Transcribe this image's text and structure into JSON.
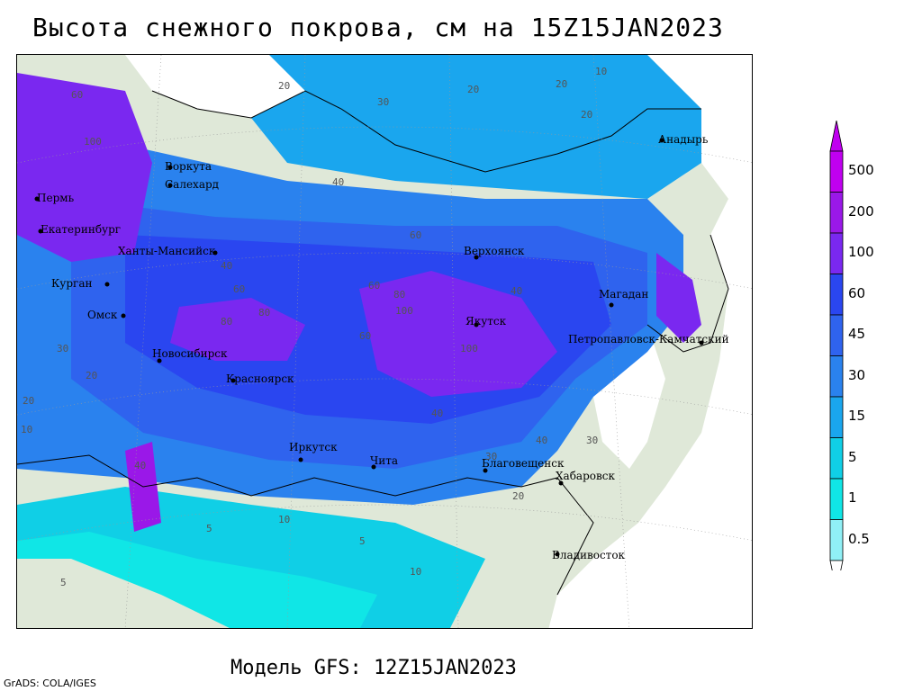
{
  "title": "Высота снежного покрова, см на 15Z15JAN2023",
  "model": "Модель GFS: 12Z15JAN2023",
  "credit": "GrADS: COLA/IGES",
  "legend": {
    "levels": [
      "500",
      "200",
      "100",
      "60",
      "45",
      "30",
      "15",
      "5",
      "1",
      "0.5"
    ],
    "colors": [
      "#c000f0",
      "#9a18e8",
      "#7a28f0",
      "#2a46f0",
      "#2f63ee",
      "#2a82ee",
      "#1aa6ee",
      "#10cfe6",
      "#10e6e6",
      "#90f0f6"
    ]
  },
  "cities": [
    {
      "name": "Анадырь"
    },
    {
      "name": "Воркута"
    },
    {
      "name": "Салехард"
    },
    {
      "name": "Пермь"
    },
    {
      "name": "Екатеринбург"
    },
    {
      "name": "Ханты-Мансийск"
    },
    {
      "name": "Курган"
    },
    {
      "name": "Омск"
    },
    {
      "name": "Новосибирск"
    },
    {
      "name": "Красноярск"
    },
    {
      "name": "Иркутск"
    },
    {
      "name": "Чита"
    },
    {
      "name": "Верхоянск"
    },
    {
      "name": "Якутск"
    },
    {
      "name": "Магадан"
    },
    {
      "name": "Петропавловск-Камчатский"
    },
    {
      "name": "Благовещенск"
    },
    {
      "name": "Хабаровск"
    },
    {
      "name": "Владивосток"
    }
  ],
  "contour_labels": [
    "10",
    "20",
    "30",
    "20",
    "20",
    "20",
    "40",
    "60",
    "100",
    "60",
    "40",
    "80",
    "100",
    "80",
    "60",
    "40",
    "30",
    "20",
    "10",
    "5",
    "10",
    "5",
    "20",
    "10",
    "40",
    "60",
    "100",
    "80",
    "60",
    "40",
    "30",
    "20",
    "30",
    "40",
    "5"
  ]
}
